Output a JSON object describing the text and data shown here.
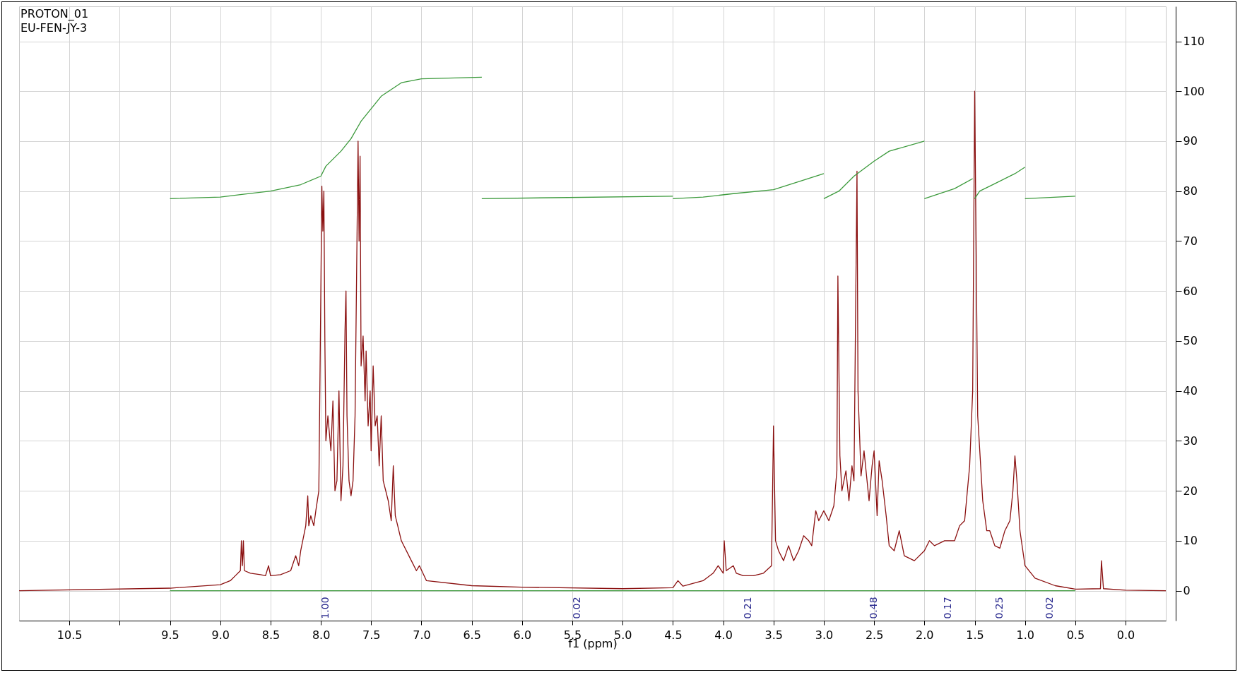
{
  "chart_data": {
    "type": "line",
    "title": "PROTON_01",
    "subtitle": "EU-FEN-JY-3",
    "xlabel": "f1 (ppm)",
    "xlim": [
      11.0,
      -0.4
    ],
    "ylim": [
      -6,
      117
    ],
    "xticks": [
      {
        "value": 10.5,
        "label": "10.5"
      },
      {
        "value": 10.0,
        "label": null
      },
      {
        "value": 9.5,
        "label": "9.5"
      },
      {
        "value": 9.0,
        "label": "9.0"
      },
      {
        "value": 8.5,
        "label": "8.5"
      },
      {
        "value": 8.0,
        "label": "8.0"
      },
      {
        "value": 7.5,
        "label": "7.5"
      },
      {
        "value": 7.0,
        "label": "7.0"
      },
      {
        "value": 6.5,
        "label": "6.5"
      },
      {
        "value": 6.0,
        "label": "6.0"
      },
      {
        "value": 5.5,
        "label": "5.5"
      },
      {
        "value": 5.0,
        "label": "5.0"
      },
      {
        "value": 4.5,
        "label": "4.5"
      },
      {
        "value": 4.0,
        "label": "4.0"
      },
      {
        "value": 3.5,
        "label": "3.5"
      },
      {
        "value": 3.0,
        "label": "3.0"
      },
      {
        "value": 2.5,
        "label": "2.5"
      },
      {
        "value": 2.0,
        "label": "2.0"
      },
      {
        "value": 1.5,
        "label": "1.5"
      },
      {
        "value": 1.0,
        "label": "1.0"
      },
      {
        "value": 0.5,
        "label": "0.5"
      },
      {
        "value": 0.0,
        "label": "0.0"
      }
    ],
    "yticks": [
      0,
      10,
      20,
      30,
      40,
      50,
      60,
      70,
      80,
      90,
      100,
      110
    ],
    "grid": true,
    "series": [
      {
        "color": "#8b1010",
        "x": [
          11.0,
          9.5,
          9.0,
          8.9,
          8.85,
          8.8,
          8.79,
          8.78,
          8.77,
          8.76,
          8.7,
          8.6,
          8.55,
          8.52,
          8.5,
          8.4,
          8.3,
          8.25,
          8.22,
          8.2,
          8.15,
          8.13,
          8.12,
          8.1,
          8.07,
          8.05,
          8.02,
          8.0,
          7.99,
          7.98,
          7.97,
          7.96,
          7.95,
          7.93,
          7.9,
          7.88,
          7.86,
          7.84,
          7.82,
          7.8,
          7.78,
          7.76,
          7.75,
          7.74,
          7.72,
          7.7,
          7.68,
          7.66,
          7.63,
          7.62,
          7.61,
          7.6,
          7.58,
          7.56,
          7.55,
          7.53,
          7.51,
          7.5,
          7.48,
          7.46,
          7.44,
          7.42,
          7.4,
          7.38,
          7.33,
          7.3,
          7.28,
          7.26,
          7.2,
          7.1,
          7.05,
          7.02,
          6.95,
          6.5,
          6.0,
          5.0,
          4.5,
          4.45,
          4.4,
          4.2,
          4.1,
          4.05,
          4.0,
          3.99,
          3.97,
          3.9,
          3.87,
          3.8,
          3.7,
          3.6,
          3.52,
          3.5,
          3.48,
          3.45,
          3.4,
          3.35,
          3.3,
          3.25,
          3.2,
          3.15,
          3.12,
          3.08,
          3.05,
          3.0,
          2.95,
          2.9,
          2.87,
          2.86,
          2.84,
          2.82,
          2.78,
          2.75,
          2.72,
          2.7,
          2.67,
          2.66,
          2.63,
          2.6,
          2.55,
          2.52,
          2.5,
          2.47,
          2.45,
          2.42,
          2.38,
          2.35,
          2.3,
          2.25,
          2.2,
          2.1,
          2.0,
          1.95,
          1.9,
          1.8,
          1.7,
          1.65,
          1.6,
          1.55,
          1.52,
          1.5,
          1.49,
          1.47,
          1.42,
          1.38,
          1.35,
          1.3,
          1.25,
          1.2,
          1.15,
          1.12,
          1.1,
          1.08,
          1.05,
          1.0,
          0.9,
          0.7,
          0.5,
          0.25,
          0.24,
          0.22,
          0.0,
          -0.4
        ],
        "values": [
          0,
          0.5,
          1.2,
          2,
          3,
          4,
          10,
          5,
          10,
          4,
          3.5,
          3.2,
          3,
          5,
          3,
          3.2,
          4,
          7,
          5,
          8,
          13,
          19,
          13,
          15,
          13,
          16,
          20,
          60,
          81,
          72,
          80,
          50,
          30,
          35,
          28,
          38,
          20,
          22,
          40,
          18,
          25,
          52,
          60,
          35,
          22,
          19,
          22,
          35,
          90,
          70,
          87,
          45,
          51,
          38,
          48,
          33,
          40,
          28,
          45,
          33,
          35,
          25,
          35,
          22,
          18,
          14,
          25,
          15,
          10,
          6,
          4,
          5,
          2,
          1,
          0.7,
          0.4,
          0.6,
          2,
          0.9,
          2,
          3.5,
          5,
          3.5,
          10,
          4,
          5,
          3.5,
          3,
          3,
          3.5,
          5,
          33,
          10,
          8,
          6,
          9,
          6,
          8,
          11,
          10,
          9,
          16,
          14,
          16,
          14,
          17,
          24,
          63,
          27,
          20,
          24,
          18,
          25,
          22,
          84,
          40,
          23,
          28,
          18,
          25,
          28,
          15,
          26,
          22,
          15,
          9,
          8,
          12,
          7,
          6,
          8,
          10,
          9,
          10,
          10,
          13,
          14,
          25,
          40,
          100,
          78,
          35,
          18,
          12,
          12,
          9,
          8.5,
          12,
          14,
          20,
          27,
          22,
          12,
          5,
          2.5,
          1,
          0.3,
          0.4,
          6,
          0.4,
          0.1,
          0
        ]
      },
      {
        "color": "#3c9a3c",
        "x": [
          9.5,
          9.0,
          8.8,
          8.5,
          8.2,
          8.0,
          7.95,
          7.8,
          7.7,
          7.6,
          7.4,
          7.2,
          7.0,
          6.4
        ],
        "values": [
          78.5,
          78.8,
          79.3,
          80,
          81.3,
          83,
          85,
          88,
          90.5,
          94,
          99,
          101.7,
          102.5,
          102.8
        ]
      },
      {
        "color": "#3c9a3c",
        "x": [
          6.4,
          4.5
        ],
        "values": [
          78.5,
          79
        ]
      },
      {
        "color": "#3c9a3c",
        "x": [
          4.5,
          4.2,
          3.9,
          3.5,
          3.0
        ],
        "values": [
          78.5,
          78.8,
          79.5,
          80.3,
          83.5
        ]
      },
      {
        "color": "#3c9a3c",
        "x": [
          3.0,
          2.85,
          2.7,
          2.5,
          2.35,
          2.0
        ],
        "values": [
          78.5,
          80,
          83,
          86,
          88,
          90
        ]
      },
      {
        "color": "#3c9a3c",
        "x": [
          2.0,
          1.7,
          1.52
        ],
        "values": [
          78.5,
          80.5,
          82.5
        ]
      },
      {
        "color": "#3c9a3c",
        "x": [
          1.5,
          1.45,
          1.3,
          1.1,
          1.0
        ],
        "values": [
          78.5,
          80,
          81.5,
          83.5,
          84.8
        ]
      },
      {
        "color": "#3c9a3c",
        "x": [
          1.0,
          0.5
        ],
        "values": [
          78.5,
          79
        ]
      },
      {
        "color": "#3c9a3c",
        "x": [
          9.5,
          0.5
        ],
        "values": [
          0,
          0
        ]
      }
    ],
    "annotations": [
      "1.00",
      "0.02",
      "0.21",
      "0.48",
      "0.17",
      "0.25",
      "0.02"
    ]
  }
}
